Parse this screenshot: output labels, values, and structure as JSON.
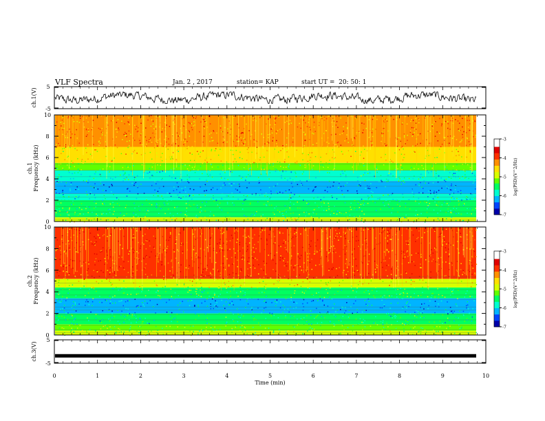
{
  "header": {
    "title": "VLF Spectra",
    "date": "Jan. 2 , 2017",
    "station": "station= KAP",
    "start": "start UT =  20: 50: 1"
  },
  "chart_data": [
    {
      "type": "line",
      "panel": "ch1-voltage",
      "ylabel": "ch.1(V)",
      "ylim": [
        -5,
        5
      ],
      "yticks": [
        "5",
        "-5"
      ],
      "xlim": [
        0,
        10
      ],
      "series": [
        {
          "values_description_free": true,
          "mean": 0,
          "amplitude_approx": 2.5
        }
      ],
      "color": "#000000"
    },
    {
      "type": "heatmap",
      "panel": "ch1-spectrogram",
      "ylabel": "ch.1\nFrequency (kHz)",
      "ylim": [
        0,
        10
      ],
      "yticks": [
        "0",
        "2",
        "4",
        "6",
        "8",
        "10"
      ],
      "xlim": [
        0,
        9.8
      ],
      "bands_khz": [
        {
          "from": 0.0,
          "to": 0.4,
          "level": -4.8
        },
        {
          "from": 0.4,
          "to": 1.0,
          "level": -5.2
        },
        {
          "from": 1.0,
          "to": 2.0,
          "level": -5.4
        },
        {
          "from": 2.0,
          "to": 2.6,
          "level": -5.7
        },
        {
          "from": 2.6,
          "to": 3.8,
          "level": -6.2
        },
        {
          "from": 3.8,
          "to": 4.8,
          "level": -5.6
        },
        {
          "from": 4.8,
          "to": 5.5,
          "level": -5.0
        },
        {
          "from": 5.5,
          "to": 7.0,
          "level": -4.4
        },
        {
          "from": 7.0,
          "to": 10.0,
          "level": -3.9
        }
      ],
      "colorbar": {
        "label": "log(PSD)(V^2/Hz)",
        "ticks": [
          "-3",
          "-4",
          "-5",
          "-6",
          "-7"
        ],
        "range": [
          -7,
          -3
        ]
      }
    },
    {
      "type": "heatmap",
      "panel": "ch2-spectrogram",
      "ylabel": "ch.2\nFrequency (kHz)",
      "ylim": [
        0,
        10
      ],
      "yticks": [
        "0",
        "2",
        "4",
        "6",
        "8",
        "10"
      ],
      "xlim": [
        0,
        9.8
      ],
      "bands_khz": [
        {
          "from": 0.0,
          "to": 0.4,
          "level": -4.8
        },
        {
          "from": 0.4,
          "to": 1.0,
          "level": -5.0
        },
        {
          "from": 1.0,
          "to": 2.0,
          "level": -5.5
        },
        {
          "from": 2.0,
          "to": 3.4,
          "level": -6.0
        },
        {
          "from": 3.4,
          "to": 4.4,
          "level": -5.2
        },
        {
          "from": 4.4,
          "to": 5.2,
          "level": -4.5
        },
        {
          "from": 5.2,
          "to": 10.0,
          "level": -3.6
        }
      ],
      "colorbar": {
        "label": "log(PSD)(V^2/Hz)",
        "ticks": [
          "-3",
          "-4",
          "-5",
          "-6",
          "-7"
        ],
        "range": [
          -7,
          -3
        ]
      }
    },
    {
      "type": "line",
      "panel": "ch3-voltage",
      "ylabel": "ch.3(V)",
      "ylim": [
        -5,
        5
      ],
      "yticks": [
        "5",
        "-5"
      ],
      "xlim": [
        0,
        10
      ],
      "series": [
        {
          "constant": -2
        }
      ],
      "xlabel": "Time (min)",
      "xticks": [
        "0",
        "1",
        "2",
        "3",
        "4",
        "5",
        "6",
        "7",
        "8",
        "9",
        "10"
      ]
    }
  ],
  "colors": {
    "spectrum": [
      "#0000aa",
      "#0044ff",
      "#00b4ff",
      "#00ffd0",
      "#00ff60",
      "#60ff00",
      "#d8ff00",
      "#ffe000",
      "#ff9000",
      "#ff3000",
      "#e00000"
    ]
  }
}
